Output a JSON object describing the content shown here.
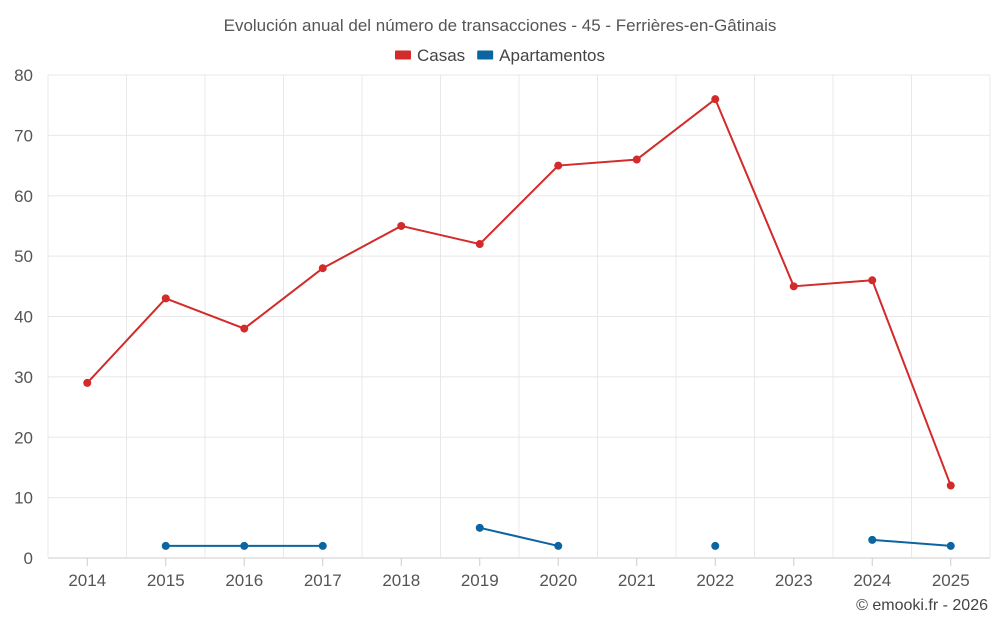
{
  "chart_data": {
    "type": "line",
    "title": "Evolución anual del número de transacciones - 45 - Ferrières-en-Gâtinais",
    "categories": [
      "2014",
      "2015",
      "2016",
      "2017",
      "2018",
      "2019",
      "2020",
      "2021",
      "2022",
      "2023",
      "2024",
      "2025"
    ],
    "ylim": [
      0,
      80
    ],
    "yticks": [
      0,
      10,
      20,
      30,
      40,
      50,
      60,
      70,
      80
    ],
    "grid": true,
    "legend_position": "top-center",
    "xlabel": "",
    "ylabel": "",
    "series": [
      {
        "name": "Casas",
        "color": "#d32a2a",
        "values": [
          29,
          43,
          38,
          48,
          55,
          52,
          65,
          66,
          76,
          45,
          46,
          12
        ]
      },
      {
        "name": "Apartamentos",
        "color": "#0b65a0",
        "values": [
          null,
          2,
          2,
          2,
          null,
          5,
          2,
          null,
          2,
          null,
          3,
          2
        ]
      }
    ]
  },
  "credit": "© emooki.fr - 2026"
}
